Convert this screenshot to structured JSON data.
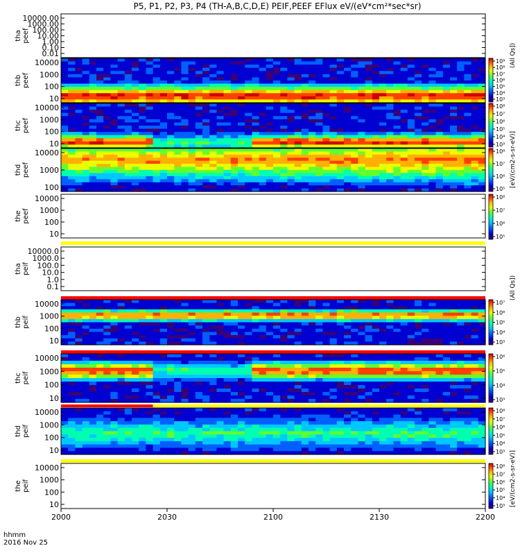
{
  "title": "P5, P1, P2, P3, P4 (TH-A,B,C,D,E) PEIF,PEEF EFlux eV/(eV*cm²*sec*sr)",
  "time_axis": {
    "label": "hhmm",
    "date": "2016 Nov 25",
    "ticks": [
      "2000",
      "2030",
      "2100",
      "2130",
      "2200"
    ],
    "range_minutes": [
      0,
      120
    ],
    "tick_minutes": [
      0,
      30,
      60,
      90,
      120
    ]
  },
  "colorbar_labels": {
    "peef_top": "(All Qs])",
    "peef_units": "[eV/(cm2-s-sr-eV)]",
    "peif_mid": "(All Qs])",
    "peif_units": "[eV/(cm2-s-sr-eV)]"
  },
  "colors": {
    "palette_rainbow": [
      "#3a007a",
      "#0000d0",
      "#0060ff",
      "#00c8ff",
      "#00ffb0",
      "#60ff30",
      "#e8ff00",
      "#ffb000",
      "#ff4000",
      "#d00000"
    ],
    "flag_yellow": "#ffff00",
    "flag_red": "#ff0000",
    "flag_black": "#000000"
  },
  "chart_data": [
    {
      "type": "heatmap",
      "panel": "tha-peef",
      "ylabel": [
        "tha",
        "peef"
      ],
      "yticks": [
        "10000.00",
        "1000.00",
        "100.00",
        "10.00",
        "1.00",
        "0.10",
        "0.01"
      ],
      "has_data": false,
      "colorbar": false,
      "flag_bar": null
    },
    {
      "type": "heatmap",
      "panel": "thb-peef",
      "ylabel": [
        "thb",
        "peef"
      ],
      "yticks": [
        "10000",
        "1000",
        "100",
        "10"
      ],
      "yrange_eV": [
        5,
        30000
      ],
      "has_data": true,
      "colorbar": true,
      "colorbar_ticks": [
        "10⁹",
        "10⁸",
        "10⁷",
        "10⁶",
        "10⁵",
        "10⁴",
        "10³"
      ],
      "peak_log10_eV": 1.3,
      "peak_shape": "steady",
      "flag_bar": null
    },
    {
      "type": "heatmap",
      "panel": "thc-peef",
      "ylabel": [
        "thc",
        "peef"
      ],
      "yticks": [
        "10000",
        "1000",
        "100",
        "10"
      ],
      "yrange_eV": [
        5,
        30000
      ],
      "has_data": true,
      "colorbar": true,
      "colorbar_ticks": [
        "10⁸",
        "10⁷",
        "10⁶",
        "10⁵",
        "10⁴",
        "10³"
      ],
      "peak_log10_eV": 1.2,
      "peak_shape": "gap",
      "gap_minutes": [
        26,
        55
      ],
      "flag_bar": null
    },
    {
      "type": "heatmap",
      "panel": "thd-peef",
      "ylabel": [
        "thd",
        "peef"
      ],
      "yticks": [
        "10000",
        "1000",
        "100"
      ],
      "yrange_eV": [
        20,
        30000
      ],
      "has_data": true,
      "colorbar": true,
      "colorbar_ticks": [
        "10⁸",
        "10⁷",
        "10⁶",
        "10⁵"
      ],
      "peak_log10_eV": 3.6,
      "peak_shape": "broad",
      "flag_bar": null
    },
    {
      "type": "heatmap",
      "panel": "the-peef",
      "ylabel": [
        "the",
        "peef"
      ],
      "yticks": [
        "10000",
        "1000",
        "100",
        "10"
      ],
      "has_data": false,
      "colorbar": true,
      "colorbar_ticks": [
        "10⁸",
        "10⁷",
        "10⁶",
        "10⁵"
      ],
      "flag_bar": {
        "color": "yellow"
      }
    },
    {
      "type": "heatmap",
      "panel": "tha-peif",
      "ylabel": [
        "tha",
        "peif"
      ],
      "yticks": [
        "10000.0",
        "1000.0",
        "100.0",
        "10.0",
        "1.0",
        "0.1"
      ],
      "has_data": false,
      "colorbar": false,
      "flag_bar": {
        "color": "red"
      }
    },
    {
      "type": "heatmap",
      "panel": "thb-peif",
      "ylabel": [
        "thb",
        "peif"
      ],
      "yticks": [
        "10000",
        "1000",
        "100",
        "10"
      ],
      "yrange_eV": [
        5,
        30000
      ],
      "has_data": true,
      "colorbar": true,
      "colorbar_ticks": [
        "10⁷",
        "10⁶",
        "10⁵",
        "10⁴",
        "10³"
      ],
      "peak_log10_eV": 3.3,
      "peak_shape": "narrow",
      "flag_bar": {
        "color": "red"
      }
    },
    {
      "type": "heatmap",
      "panel": "thc-peif",
      "ylabel": [
        "thc",
        "peif"
      ],
      "yticks": [
        "10000",
        "1000",
        "100",
        "10"
      ],
      "yrange_eV": [
        5,
        30000
      ],
      "has_data": true,
      "colorbar": true,
      "colorbar_ticks": [
        "10⁶",
        "10⁵",
        "10⁴",
        "10³"
      ],
      "peak_log10_eV": 3.3,
      "peak_shape": "gap",
      "gap_minutes": [
        26,
        55
      ],
      "flag_bar": {
        "color": "split",
        "red_until_minutes": 26
      }
    },
    {
      "type": "heatmap",
      "panel": "thd-peif",
      "ylabel": [
        "thd",
        "peif"
      ],
      "yticks": [
        "10000",
        "1000",
        "100",
        "10"
      ],
      "yrange_eV": [
        5,
        30000
      ],
      "has_data": true,
      "colorbar": true,
      "colorbar_ticks": [
        "10⁸",
        "10⁷",
        "10⁶",
        "10⁵",
        "10⁴",
        "10³"
      ],
      "peak_log10_eV": 2.5,
      "peak_shape": "diffuse",
      "flag_bar": {
        "color": "yellow"
      }
    },
    {
      "type": "heatmap",
      "panel": "the-peif",
      "ylabel": [
        "the",
        "peif"
      ],
      "yticks": [
        "10000",
        "1000",
        "100",
        "10"
      ],
      "has_data": false,
      "colorbar": true,
      "colorbar_ticks": [
        "10⁸",
        "10⁷",
        "10⁶",
        "10⁵",
        "10⁴",
        "10³"
      ],
      "flag_bar": null
    }
  ]
}
